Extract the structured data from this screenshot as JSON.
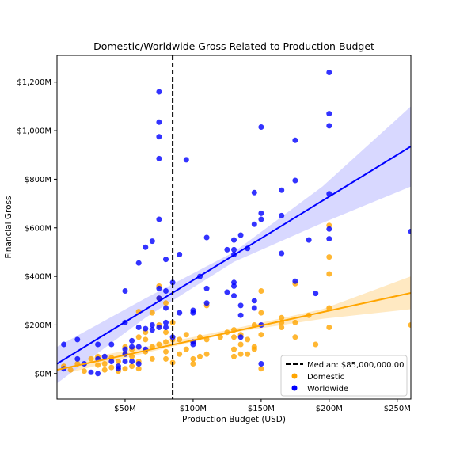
{
  "chart_data": {
    "type": "scatter",
    "title": "Domestic/Worldwide Gross Related to Production Budget",
    "xlabel": "Production Budget (USD)",
    "ylabel": "Financial Gross",
    "xlim": [
      0,
      260
    ],
    "ylim": [
      -105,
      1310
    ],
    "x_unit": "$M",
    "y_unit": "$M",
    "x_ticks": [
      {
        "value": 50,
        "label": "$50M"
      },
      {
        "value": 100,
        "label": "$100M"
      },
      {
        "value": 150,
        "label": "$150M"
      },
      {
        "value": 200,
        "label": "$200M"
      },
      {
        "value": 250,
        "label": "$250M"
      }
    ],
    "y_ticks": [
      {
        "value": 0,
        "label": "$0M"
      },
      {
        "value": 200,
        "label": "$200M"
      },
      {
        "value": 400,
        "label": "$400M"
      },
      {
        "value": 600,
        "label": "$600M"
      },
      {
        "value": 800,
        "label": "$800M"
      },
      {
        "value": 1000,
        "label": "$1,000M"
      },
      {
        "value": 1200,
        "label": "$1,200M"
      }
    ],
    "median": {
      "value": 85,
      "label": "Median: $85,000,000.00",
      "color": "#000000"
    },
    "legend_position": "lower-right",
    "grid": false,
    "series": [
      {
        "name": "Domestic",
        "color": "#ffa500",
        "band_color": "#ffe8bf",
        "fit": {
          "x": [
            0,
            260
          ],
          "y": [
            15,
            332
          ]
        },
        "band": {
          "x": [
            0,
            65,
            130,
            195,
            260
          ],
          "lower": [
            -10,
            85,
            170,
            225,
            265
          ],
          "upper": [
            40,
            110,
            185,
            265,
            400
          ]
        },
        "points": [
          [
            5,
            30
          ],
          [
            10,
            15
          ],
          [
            15,
            40
          ],
          [
            20,
            10
          ],
          [
            25,
            60
          ],
          [
            30,
            35
          ],
          [
            30,
            70
          ],
          [
            35,
            15
          ],
          [
            35,
            40
          ],
          [
            40,
            25
          ],
          [
            40,
            65
          ],
          [
            45,
            10
          ],
          [
            45,
            50
          ],
          [
            50,
            20
          ],
          [
            50,
            110
          ],
          [
            50,
            80
          ],
          [
            55,
            30
          ],
          [
            55,
            100
          ],
          [
            55,
            70
          ],
          [
            60,
            50
          ],
          [
            60,
            20
          ],
          [
            60,
            150
          ],
          [
            60,
            255
          ],
          [
            65,
            90
          ],
          [
            65,
            140
          ],
          [
            65,
            170
          ],
          [
            70,
            60
          ],
          [
            70,
            110
          ],
          [
            70,
            250
          ],
          [
            75,
            200
          ],
          [
            75,
            120
          ],
          [
            75,
            360
          ],
          [
            75,
            310
          ],
          [
            80,
            90
          ],
          [
            80,
            60
          ],
          [
            80,
            130
          ],
          [
            80,
            170
          ],
          [
            80,
            290
          ],
          [
            85,
            45
          ],
          [
            85,
            140
          ],
          [
            85,
            210
          ],
          [
            90,
            80
          ],
          [
            90,
            140
          ],
          [
            95,
            100
          ],
          [
            95,
            160
          ],
          [
            100,
            40
          ],
          [
            100,
            60
          ],
          [
            100,
            130
          ],
          [
            105,
            70
          ],
          [
            105,
            150
          ],
          [
            110,
            80
          ],
          [
            110,
            140
          ],
          [
            110,
            280
          ],
          [
            120,
            150
          ],
          [
            125,
            170
          ],
          [
            130,
            70
          ],
          [
            130,
            100
          ],
          [
            130,
            150
          ],
          [
            130,
            180
          ],
          [
            135,
            80
          ],
          [
            135,
            120
          ],
          [
            135,
            160
          ],
          [
            140,
            80
          ],
          [
            140,
            140
          ],
          [
            145,
            100
          ],
          [
            145,
            110
          ],
          [
            145,
            200
          ],
          [
            150,
            20
          ],
          [
            150,
            160
          ],
          [
            150,
            250
          ],
          [
            150,
            340
          ],
          [
            165,
            190
          ],
          [
            165,
            210
          ],
          [
            165,
            230
          ],
          [
            175,
            150
          ],
          [
            175,
            210
          ],
          [
            175,
            370
          ],
          [
            185,
            240
          ],
          [
            190,
            120
          ],
          [
            200,
            190
          ],
          [
            200,
            270
          ],
          [
            200,
            410
          ],
          [
            200,
            480
          ],
          [
            200,
            610
          ],
          [
            260,
            200
          ]
        ]
      },
      {
        "name": "Worldwide",
        "color": "#0000ff",
        "band_color": "#d6d6ff",
        "fit": {
          "x": [
            0,
            260
          ],
          "y": [
            40,
            935
          ]
        },
        "band": {
          "x": [
            0,
            65,
            130,
            195,
            260
          ],
          "lower": [
            -40,
            230,
            460,
            620,
            770
          ],
          "upper": [
            110,
            310,
            500,
            770,
            1100
          ]
        },
        "points": [
          [
            5,
            120
          ],
          [
            5,
            20
          ],
          [
            15,
            140
          ],
          [
            15,
            60
          ],
          [
            20,
            40
          ],
          [
            25,
            5
          ],
          [
            30,
            120
          ],
          [
            30,
            60
          ],
          [
            30,
            0
          ],
          [
            35,
            70
          ],
          [
            40,
            120
          ],
          [
            40,
            50
          ],
          [
            45,
            30
          ],
          [
            45,
            20
          ],
          [
            50,
            340
          ],
          [
            50,
            210
          ],
          [
            50,
            80
          ],
          [
            50,
            100
          ],
          [
            50,
            50
          ],
          [
            55,
            135
          ],
          [
            55,
            110
          ],
          [
            55,
            50
          ],
          [
            60,
            190
          ],
          [
            60,
            455
          ],
          [
            60,
            40
          ],
          [
            60,
            110
          ],
          [
            65,
            520
          ],
          [
            65,
            185
          ],
          [
            65,
            100
          ],
          [
            70,
            545
          ],
          [
            70,
            180
          ],
          [
            70,
            200
          ],
          [
            75,
            1160
          ],
          [
            75,
            1035
          ],
          [
            75,
            975
          ],
          [
            75,
            885
          ],
          [
            75,
            635
          ],
          [
            75,
            350
          ],
          [
            75,
            310
          ],
          [
            75,
            190
          ],
          [
            80,
            470
          ],
          [
            80,
            340
          ],
          [
            80,
            270
          ],
          [
            80,
            210
          ],
          [
            80,
            190
          ],
          [
            85,
            375
          ],
          [
            85,
            150
          ],
          [
            90,
            490
          ],
          [
            90,
            250
          ],
          [
            95,
            880
          ],
          [
            100,
            250
          ],
          [
            100,
            260
          ],
          [
            100,
            130
          ],
          [
            100,
            120
          ],
          [
            105,
            400
          ],
          [
            110,
            560
          ],
          [
            110,
            350
          ],
          [
            110,
            290
          ],
          [
            125,
            510
          ],
          [
            125,
            335
          ],
          [
            130,
            510
          ],
          [
            130,
            550
          ],
          [
            130,
            490
          ],
          [
            130,
            375
          ],
          [
            130,
            360
          ],
          [
            130,
            320
          ],
          [
            135,
            570
          ],
          [
            135,
            280
          ],
          [
            135,
            240
          ],
          [
            135,
            150
          ],
          [
            140,
            515
          ],
          [
            145,
            745
          ],
          [
            145,
            615
          ],
          [
            145,
            300
          ],
          [
            145,
            270
          ],
          [
            150,
            1015
          ],
          [
            150,
            660
          ],
          [
            150,
            635
          ],
          [
            150,
            200
          ],
          [
            150,
            40
          ],
          [
            165,
            755
          ],
          [
            165,
            650
          ],
          [
            165,
            495
          ],
          [
            175,
            960
          ],
          [
            175,
            795
          ],
          [
            175,
            380
          ],
          [
            185,
            550
          ],
          [
            190,
            330
          ],
          [
            200,
            1240
          ],
          [
            200,
            1070
          ],
          [
            200,
            1020
          ],
          [
            200,
            740
          ],
          [
            200,
            595
          ],
          [
            200,
            555
          ],
          [
            260,
            585
          ]
        ]
      }
    ]
  }
}
